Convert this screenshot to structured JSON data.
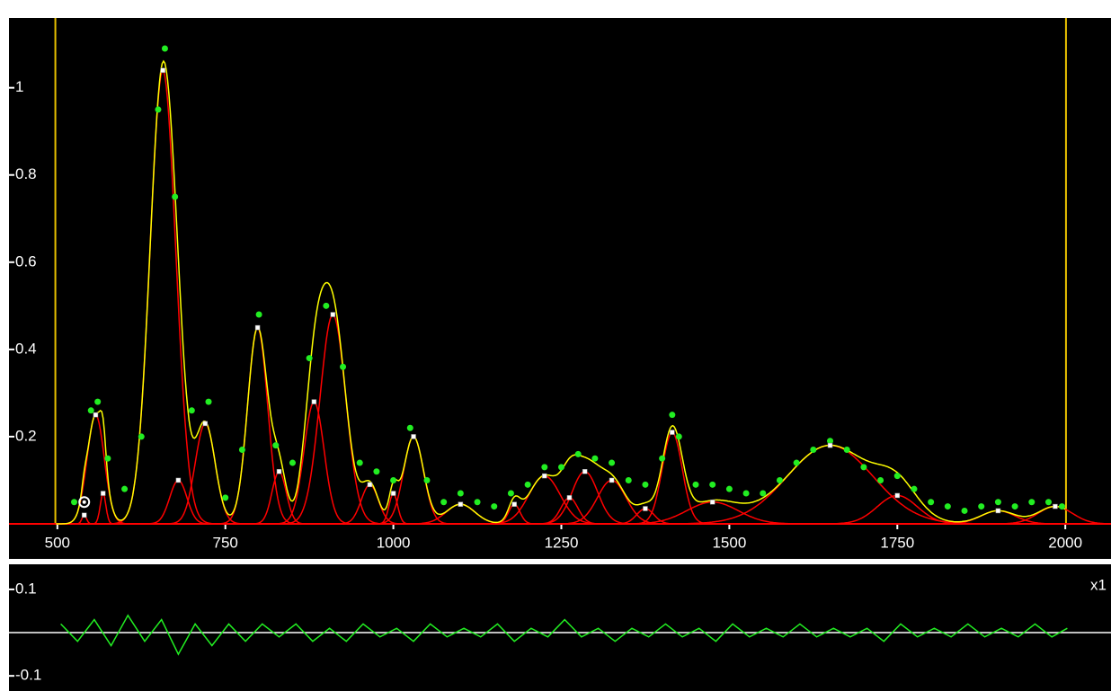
{
  "chart_data": [
    {
      "type": "scatter",
      "xlim": [
        428,
        2068
      ],
      "ylim": [
        0,
        1.16
      ],
      "xticks": [
        500,
        750,
        1000,
        1250,
        1500,
        1750,
        2000
      ],
      "yticks": [
        0.2,
        0.4,
        0.6,
        0.8,
        1
      ],
      "range_markers": [
        497,
        2001
      ],
      "cursor": {
        "x": 540,
        "y": 0.05
      },
      "color": "#22ee22",
      "fit_color": "#ffff00",
      "peak_color": "#ff0000",
      "x": [
        525,
        550,
        560,
        575,
        600,
        625,
        650,
        660,
        675,
        700,
        725,
        750,
        775,
        800,
        825,
        850,
        875,
        900,
        925,
        950,
        975,
        1000,
        1025,
        1050,
        1075,
        1100,
        1125,
        1150,
        1175,
        1200,
        1225,
        1250,
        1275,
        1300,
        1325,
        1350,
        1375,
        1400,
        1415,
        1425,
        1450,
        1475,
        1500,
        1525,
        1550,
        1575,
        1600,
        1625,
        1650,
        1675,
        1700,
        1725,
        1750,
        1775,
        1800,
        1825,
        1850,
        1875,
        1900,
        1925,
        1950,
        1975,
        1995
      ],
      "values": [
        0.05,
        0.26,
        0.28,
        0.15,
        0.08,
        0.2,
        0.95,
        1.09,
        0.75,
        0.26,
        0.28,
        0.06,
        0.17,
        0.48,
        0.18,
        0.14,
        0.38,
        0.5,
        0.36,
        0.14,
        0.12,
        0.1,
        0.22,
        0.1,
        0.05,
        0.07,
        0.05,
        0.04,
        0.07,
        0.09,
        0.13,
        0.13,
        0.16,
        0.15,
        0.14,
        0.1,
        0.09,
        0.15,
        0.25,
        0.2,
        0.09,
        0.09,
        0.08,
        0.07,
        0.07,
        0.1,
        0.14,
        0.17,
        0.19,
        0.17,
        0.13,
        0.1,
        0.11,
        0.08,
        0.05,
        0.04,
        0.03,
        0.04,
        0.05,
        0.04,
        0.05,
        0.05,
        0.04
      ],
      "peaks": [
        {
          "position": 540,
          "height": 0.02,
          "width": 8
        },
        {
          "position": 557,
          "height": 0.25,
          "width": 30
        },
        {
          "position": 568,
          "height": 0.07,
          "width": 10
        },
        {
          "position": 657,
          "height": 1.04,
          "width": 45
        },
        {
          "position": 680,
          "height": 0.1,
          "width": 30
        },
        {
          "position": 720,
          "height": 0.23,
          "width": 35
        },
        {
          "position": 798,
          "height": 0.45,
          "width": 35
        },
        {
          "position": 830,
          "height": 0.12,
          "width": 25
        },
        {
          "position": 882,
          "height": 0.28,
          "width": 35
        },
        {
          "position": 910,
          "height": 0.48,
          "width": 45
        },
        {
          "position": 965,
          "height": 0.09,
          "width": 30
        },
        {
          "position": 1000,
          "height": 0.07,
          "width": 15
        },
        {
          "position": 1030,
          "height": 0.2,
          "width": 35
        },
        {
          "position": 1100,
          "height": 0.045,
          "width": 50
        },
        {
          "position": 1180,
          "height": 0.045,
          "width": 20
        },
        {
          "position": 1225,
          "height": 0.11,
          "width": 55
        },
        {
          "position": 1262,
          "height": 0.06,
          "width": 30
        },
        {
          "position": 1285,
          "height": 0.12,
          "width": 45
        },
        {
          "position": 1325,
          "height": 0.1,
          "width": 50
        },
        {
          "position": 1375,
          "height": 0.035,
          "width": 30
        },
        {
          "position": 1415,
          "height": 0.21,
          "width": 35
        },
        {
          "position": 1475,
          "height": 0.05,
          "width": 90
        },
        {
          "position": 1650,
          "height": 0.18,
          "width": 150
        },
        {
          "position": 1750,
          "height": 0.065,
          "width": 70
        },
        {
          "position": 1900,
          "height": 0.03,
          "width": 60
        },
        {
          "position": 1985,
          "height": 0.04,
          "width": 60
        }
      ]
    },
    {
      "type": "line",
      "xlim": [
        428,
        2068
      ],
      "ylim": [
        -0.135,
        0.158
      ],
      "yticks": [
        0.1,
        -0.1
      ],
      "label": "x1",
      "color": "#22ee22",
      "x": [
        505,
        530,
        555,
        580,
        605,
        630,
        655,
        680,
        705,
        730,
        755,
        780,
        805,
        830,
        855,
        880,
        905,
        930,
        955,
        980,
        1005,
        1030,
        1055,
        1080,
        1105,
        1130,
        1155,
        1180,
        1205,
        1230,
        1255,
        1280,
        1305,
        1330,
        1355,
        1380,
        1405,
        1430,
        1455,
        1480,
        1505,
        1530,
        1555,
        1580,
        1605,
        1630,
        1655,
        1680,
        1705,
        1730,
        1755,
        1780,
        1805,
        1830,
        1855,
        1880,
        1905,
        1930,
        1955,
        1980,
        2003
      ],
      "values": [
        0.02,
        -0.02,
        0.03,
        -0.03,
        0.04,
        -0.02,
        0.03,
        -0.05,
        0.02,
        -0.03,
        0.02,
        -0.02,
        0.02,
        -0.01,
        0.02,
        -0.02,
        0.01,
        -0.02,
        0.02,
        -0.01,
        0.01,
        -0.02,
        0.02,
        -0.01,
        0.01,
        -0.01,
        0.02,
        -0.02,
        0.01,
        -0.01,
        0.03,
        -0.01,
        0.01,
        -0.02,
        0.01,
        -0.01,
        0.02,
        -0.01,
        0.01,
        -0.02,
        0.02,
        -0.01,
        0.01,
        -0.01,
        0.02,
        -0.01,
        0.01,
        -0.01,
        0.01,
        -0.02,
        0.02,
        -0.01,
        0.01,
        -0.01,
        0.02,
        -0.01,
        0.01,
        -0.01,
        0.02,
        -0.01,
        0.01
      ]
    }
  ]
}
